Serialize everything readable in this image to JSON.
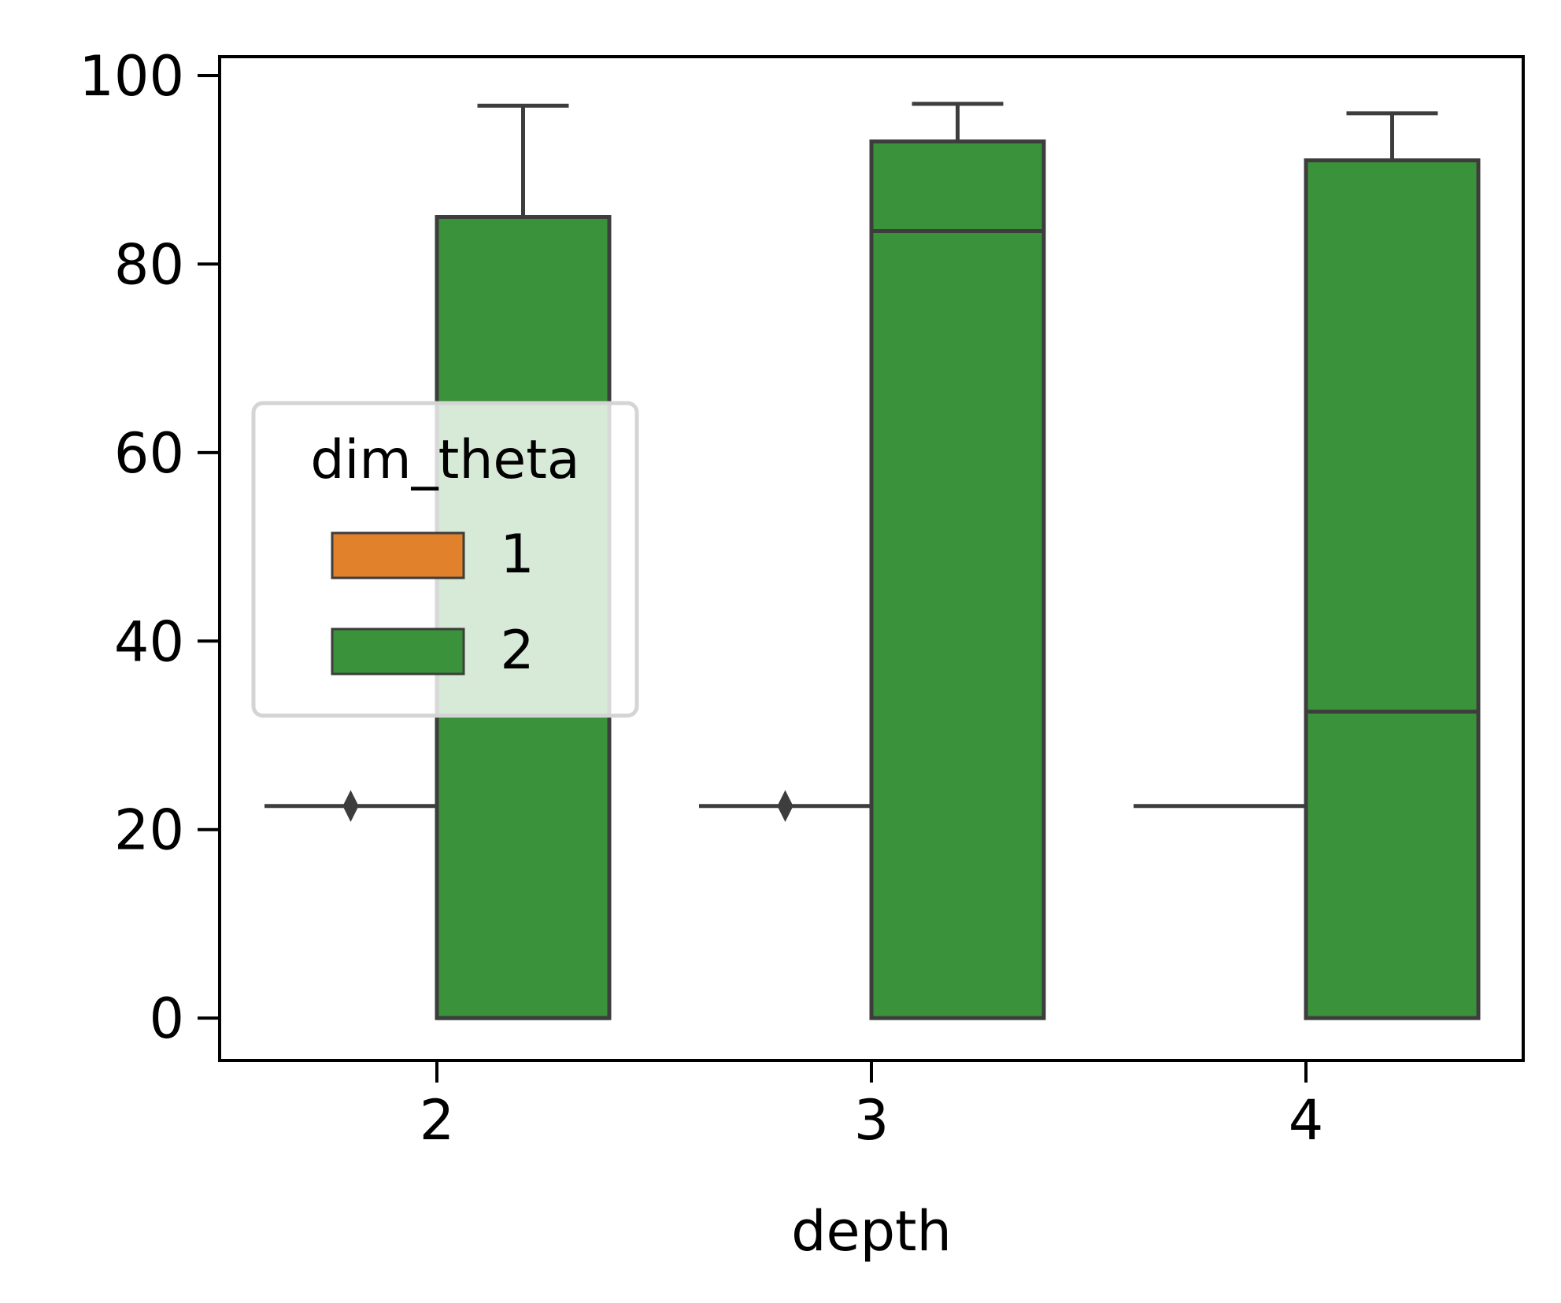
{
  "chart_data": {
    "type": "box",
    "xlabel": "depth",
    "ylabel": "",
    "categories": [
      "2",
      "3",
      "4"
    ],
    "ylim": [
      -4.5,
      102
    ],
    "yticks": [
      0,
      20,
      40,
      60,
      80,
      100
    ],
    "grid": false,
    "legend": {
      "title": "dim_theta",
      "placement": "center-left",
      "entries": [
        {
          "label": "1",
          "color": "#e1812c"
        },
        {
          "label": "2",
          "color": "#3a923a"
        }
      ]
    },
    "series": [
      {
        "name": "1",
        "color": "#e1812c",
        "boxes": [
          {
            "category": "2",
            "whisker_low": 22.5,
            "q1": 22.5,
            "median": 22.5,
            "q3": 22.5,
            "whisker_high": 22.5,
            "outliers": [
              22.5
            ]
          },
          {
            "category": "3",
            "whisker_low": 22.5,
            "q1": 22.5,
            "median": 22.5,
            "q3": 22.5,
            "whisker_high": 22.5,
            "outliers": [
              22.5
            ]
          },
          {
            "category": "4",
            "whisker_low": 22.5,
            "q1": 22.5,
            "median": 22.5,
            "q3": 22.5,
            "whisker_high": 22.5,
            "outliers": []
          }
        ]
      },
      {
        "name": "2",
        "color": "#3a923a",
        "boxes": [
          {
            "category": "2",
            "whisker_low": 0,
            "q1": 0,
            "median": 0,
            "q3": 85,
            "whisker_high": 96.8,
            "outliers": []
          },
          {
            "category": "3",
            "whisker_low": 0,
            "q1": 0,
            "median": 83.5,
            "q3": 93,
            "whisker_high": 97,
            "outliers": []
          },
          {
            "category": "4",
            "whisker_low": 0,
            "q1": 0,
            "median": 32.5,
            "q3": 91,
            "whisker_high": 96,
            "outliers": []
          }
        ]
      }
    ]
  }
}
